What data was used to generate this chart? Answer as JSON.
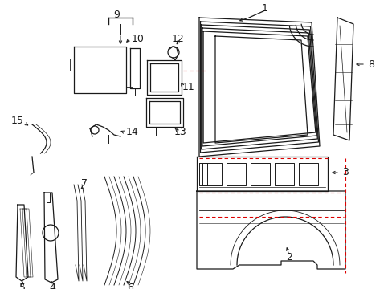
{
  "bg_color": "#ffffff",
  "line_color": "#1a1a1a",
  "red_dash_color": "#dd0000",
  "lw": 0.9
}
